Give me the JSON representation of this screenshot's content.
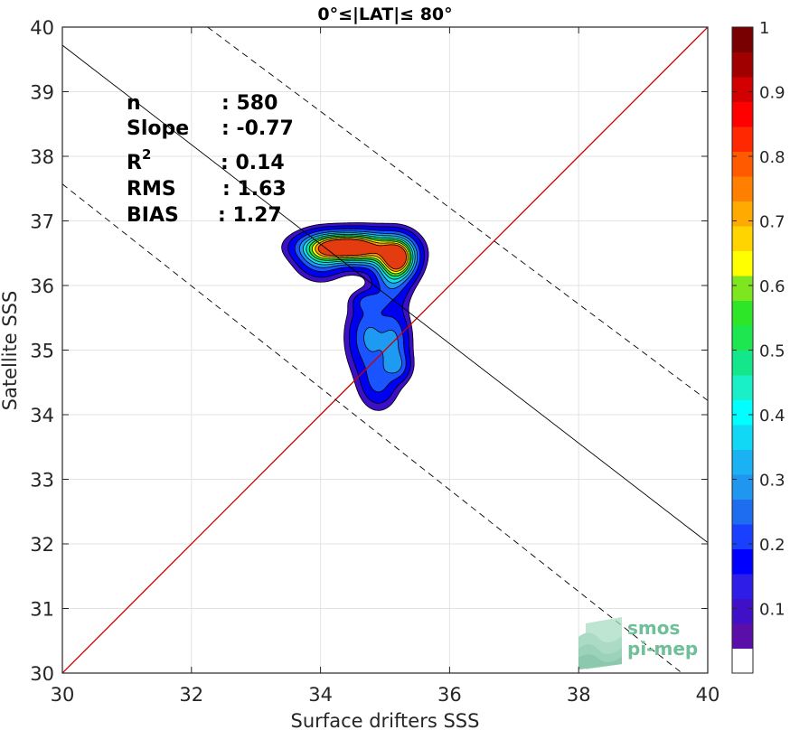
{
  "chart_data": {
    "type": "contour",
    "title": "0°≤|LAT|≤ 80°",
    "xlabel": "Surface drifters SSS",
    "ylabel": "Satellite SSS",
    "xlim": [
      30,
      40
    ],
    "ylim": [
      30,
      40
    ],
    "xticks": [
      "30",
      "32",
      "34",
      "36",
      "38",
      "40"
    ],
    "yticks": [
      "30",
      "31",
      "32",
      "33",
      "34",
      "35",
      "36",
      "37",
      "38",
      "39",
      "40"
    ],
    "grid": true,
    "stats": {
      "n_label": "n",
      "n_value": ": 580",
      "slope_label": "Slope",
      "slope_value": ": -0.77",
      "r2_label": "R",
      "r2_sup": "2",
      "r2_value": ": 0.14",
      "rms_label": "RMS",
      "rms_value": ": 1.63",
      "bias_label": "BIAS",
      "bias_value": ": 1.27"
    },
    "identity_line": {
      "x": [
        30,
        40
      ],
      "y": [
        30,
        40
      ],
      "color": "#cc0000"
    },
    "regression_line": {
      "x": [
        30,
        40
      ],
      "y": [
        39.72,
        32.02
      ],
      "color": "#000000"
    },
    "upper_envelope": {
      "x": [
        32.25,
        40
      ],
      "y": [
        40,
        34.22
      ],
      "style": "dashed"
    },
    "lower_envelope": {
      "x": [
        30,
        39.6
      ],
      "y": [
        37.57,
        30
      ],
      "style": "dashed"
    },
    "colorbar": {
      "ticks": [
        "0.1",
        "0.2",
        "0.3",
        "0.4",
        "0.5",
        "0.6",
        "0.7",
        "0.8",
        "0.9",
        "1"
      ],
      "tick_values": [
        0.1,
        0.2,
        0.3,
        0.4,
        0.5,
        0.6,
        0.7,
        0.8,
        0.9,
        1.0
      ],
      "colors": [
        "#ffffff",
        "#5a0fa8",
        "#3f10c8",
        "#2d1de6",
        "#0000ff",
        "#1a40ff",
        "#1e6cf0",
        "#1f96f0",
        "#1ab2f2",
        "#10d8f5",
        "#00ffff",
        "#19f0c8",
        "#14e68c",
        "#1ee650",
        "#2ee628",
        "#7ee61e",
        "#ffff00",
        "#ffd400",
        "#ffaa00",
        "#ff8000",
        "#ff5a00",
        "#ff2800",
        "#ff0000",
        "#d20000",
        "#a00000",
        "#780000"
      ]
    },
    "density": {
      "levels": [
        0.05,
        0.1,
        0.2,
        0.3,
        0.4,
        0.5,
        0.6,
        0.7,
        0.8,
        0.9
      ],
      "level_colors": [
        "#3d10c4",
        "#0000f0",
        "#1a55ff",
        "#1e9af2",
        "#12dcf0",
        "#18e6a0",
        "#30e228",
        "#ffff00",
        "#ff9a00",
        "#e43c10"
      ],
      "blobs": [
        {
          "x": 34.35,
          "y": 36.6,
          "sx": 0.38,
          "sy": 0.14,
          "a": 1.0
        },
        {
          "x": 35.2,
          "y": 36.42,
          "sx": 0.18,
          "sy": 0.2,
          "a": 0.95
        },
        {
          "x": 34.8,
          "y": 36.55,
          "sx": 0.35,
          "sy": 0.18,
          "a": 0.45
        },
        {
          "x": 34.0,
          "y": 36.45,
          "sx": 0.22,
          "sy": 0.2,
          "a": 0.35
        },
        {
          "x": 35.1,
          "y": 36.05,
          "sx": 0.18,
          "sy": 0.25,
          "a": 0.25
        },
        {
          "x": 34.75,
          "y": 35.75,
          "sx": 0.16,
          "sy": 0.1,
          "a": 0.18
        },
        {
          "x": 34.75,
          "y": 35.2,
          "sx": 0.2,
          "sy": 0.35,
          "a": 0.32
        },
        {
          "x": 35.15,
          "y": 35.15,
          "sx": 0.15,
          "sy": 0.3,
          "a": 0.28
        },
        {
          "x": 34.9,
          "y": 34.5,
          "sx": 0.18,
          "sy": 0.25,
          "a": 0.22
        },
        {
          "x": 35.2,
          "y": 34.75,
          "sx": 0.13,
          "sy": 0.15,
          "a": 0.2
        }
      ]
    }
  },
  "watermark": {
    "line1": "smos",
    "line2": "pi-mep"
  }
}
